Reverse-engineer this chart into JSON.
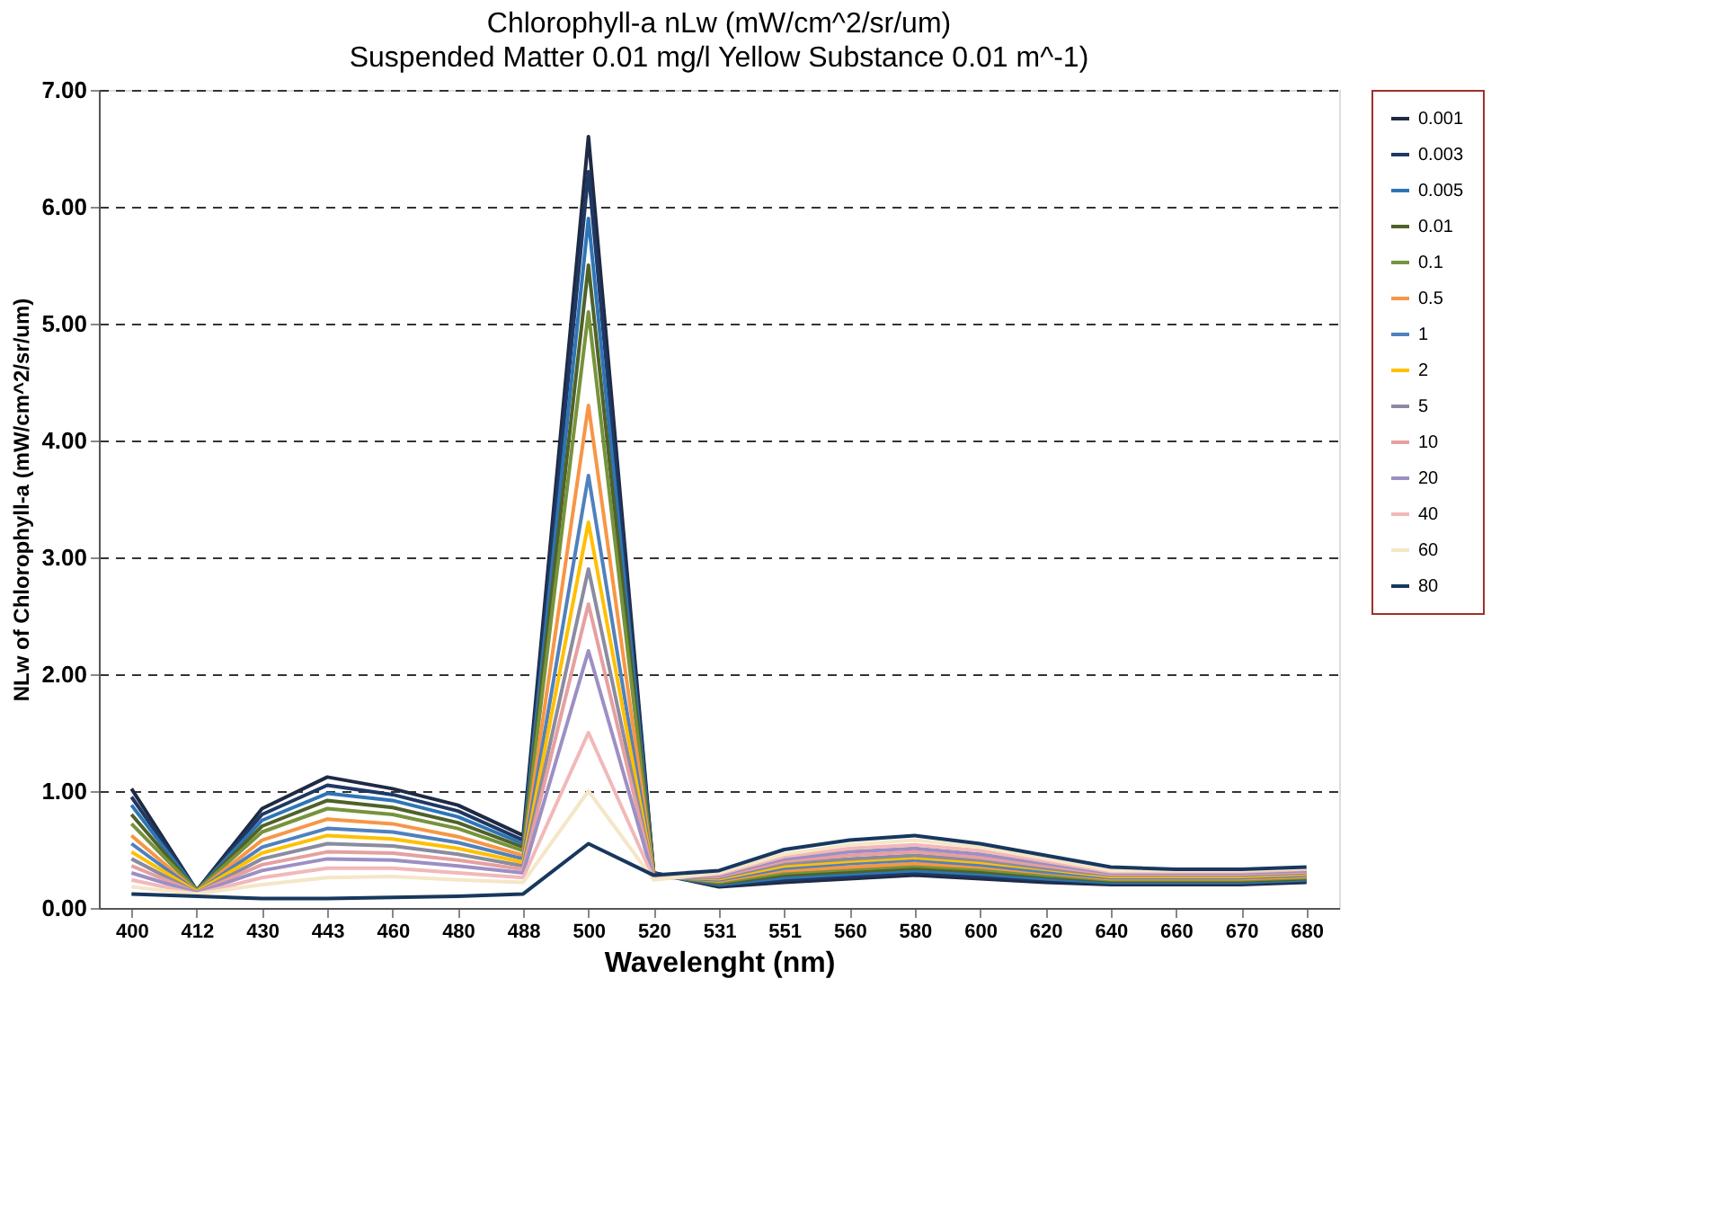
{
  "chart_data": {
    "type": "line",
    "title": "Chlorophyll-a nLw (mW/cm^2/sr/um)",
    "subtitle": "Suspended Matter 0.01 mg/l  Yellow Substance 0.01 m^-1)",
    "xlabel": "Wavelenght (nm)",
    "ylabel": "NLw of Chlorophyll-a (mW/cm^2/sr/um)",
    "categories": [
      "400",
      "412",
      "430",
      "443",
      "460",
      "480",
      "488",
      "500",
      "520",
      "531",
      "551",
      "560",
      "580",
      "600",
      "620",
      "640",
      "660",
      "670",
      "680"
    ],
    "ylim": [
      0,
      7
    ],
    "yticks": [
      {
        "value": 0,
        "label": "0.00"
      },
      {
        "value": 1,
        "label": "1.00"
      },
      {
        "value": 2,
        "label": "2.00"
      },
      {
        "value": 3,
        "label": "3.00"
      },
      {
        "value": 4,
        "label": "4.00"
      },
      {
        "value": 5,
        "label": "5.00"
      },
      {
        "value": 6,
        "label": "6.00"
      },
      {
        "value": 7,
        "label": "7.00"
      }
    ],
    "grid": "y",
    "legend": "right",
    "marker": "none",
    "line_style": "solid",
    "series": [
      {
        "name": "0.001",
        "color": "#1f2a44",
        "values": [
          1.02,
          0.15,
          0.85,
          1.12,
          1.02,
          0.88,
          0.62,
          6.6,
          0.3,
          0.18,
          0.22,
          0.25,
          0.28,
          0.25,
          0.22,
          0.2,
          0.2,
          0.2,
          0.22
        ]
      },
      {
        "name": "0.003",
        "color": "#1f3864",
        "values": [
          0.95,
          0.15,
          0.8,
          1.05,
          0.97,
          0.83,
          0.58,
          6.3,
          0.3,
          0.19,
          0.24,
          0.27,
          0.3,
          0.27,
          0.24,
          0.21,
          0.21,
          0.21,
          0.23
        ]
      },
      {
        "name": "0.005",
        "color": "#2e75b6",
        "values": [
          0.88,
          0.15,
          0.75,
          0.98,
          0.92,
          0.78,
          0.55,
          5.9,
          0.29,
          0.2,
          0.26,
          0.29,
          0.32,
          0.29,
          0.25,
          0.22,
          0.22,
          0.22,
          0.24
        ]
      },
      {
        "name": "0.01",
        "color": "#4f6228",
        "values": [
          0.8,
          0.15,
          0.7,
          0.92,
          0.86,
          0.73,
          0.52,
          5.5,
          0.29,
          0.21,
          0.28,
          0.31,
          0.34,
          0.31,
          0.27,
          0.23,
          0.23,
          0.23,
          0.25
        ]
      },
      {
        "name": "0.1",
        "color": "#77933c",
        "values": [
          0.72,
          0.15,
          0.65,
          0.85,
          0.8,
          0.68,
          0.49,
          5.1,
          0.28,
          0.22,
          0.3,
          0.33,
          0.36,
          0.33,
          0.28,
          0.24,
          0.24,
          0.24,
          0.26
        ]
      },
      {
        "name": "0.5",
        "color": "#f79646",
        "values": [
          0.62,
          0.14,
          0.58,
          0.76,
          0.72,
          0.61,
          0.45,
          4.3,
          0.28,
          0.23,
          0.32,
          0.35,
          0.38,
          0.35,
          0.3,
          0.25,
          0.25,
          0.25,
          0.27
        ]
      },
      {
        "name": "1",
        "color": "#4f81bd",
        "values": [
          0.55,
          0.14,
          0.52,
          0.68,
          0.65,
          0.56,
          0.42,
          3.7,
          0.27,
          0.24,
          0.34,
          0.38,
          0.41,
          0.37,
          0.31,
          0.26,
          0.26,
          0.26,
          0.28
        ]
      },
      {
        "name": "2",
        "color": "#ffc000",
        "values": [
          0.48,
          0.14,
          0.47,
          0.62,
          0.59,
          0.51,
          0.39,
          3.3,
          0.27,
          0.25,
          0.36,
          0.4,
          0.43,
          0.39,
          0.33,
          0.27,
          0.27,
          0.27,
          0.29
        ]
      },
      {
        "name": "5",
        "color": "#8b8ba0",
        "values": [
          0.42,
          0.13,
          0.42,
          0.55,
          0.53,
          0.46,
          0.36,
          2.9,
          0.26,
          0.26,
          0.38,
          0.42,
          0.45,
          0.41,
          0.34,
          0.28,
          0.28,
          0.28,
          0.3
        ]
      },
      {
        "name": "10",
        "color": "#e6a0a0",
        "values": [
          0.36,
          0.13,
          0.37,
          0.48,
          0.47,
          0.41,
          0.33,
          2.6,
          0.26,
          0.27,
          0.4,
          0.45,
          0.48,
          0.43,
          0.36,
          0.29,
          0.29,
          0.29,
          0.31
        ]
      },
      {
        "name": "20",
        "color": "#9c8fc4",
        "values": [
          0.3,
          0.13,
          0.32,
          0.42,
          0.41,
          0.36,
          0.3,
          2.2,
          0.25,
          0.28,
          0.42,
          0.48,
          0.51,
          0.46,
          0.38,
          0.3,
          0.3,
          0.3,
          0.32
        ]
      },
      {
        "name": "40",
        "color": "#f2b8b8",
        "values": [
          0.24,
          0.12,
          0.26,
          0.34,
          0.34,
          0.3,
          0.26,
          1.5,
          0.25,
          0.29,
          0.44,
          0.51,
          0.54,
          0.49,
          0.4,
          0.31,
          0.31,
          0.31,
          0.33
        ]
      },
      {
        "name": "60",
        "color": "#f5e6c8",
        "values": [
          0.18,
          0.12,
          0.2,
          0.26,
          0.27,
          0.24,
          0.22,
          1.0,
          0.24,
          0.3,
          0.46,
          0.54,
          0.58,
          0.52,
          0.42,
          0.32,
          0.32,
          0.32,
          0.34
        ]
      },
      {
        "name": "80",
        "color": "#17375e",
        "values": [
          0.12,
          0.1,
          0.08,
          0.08,
          0.09,
          0.1,
          0.12,
          0.55,
          0.28,
          0.32,
          0.5,
          0.58,
          0.62,
          0.55,
          0.45,
          0.35,
          0.33,
          0.33,
          0.35
        ]
      }
    ]
  }
}
